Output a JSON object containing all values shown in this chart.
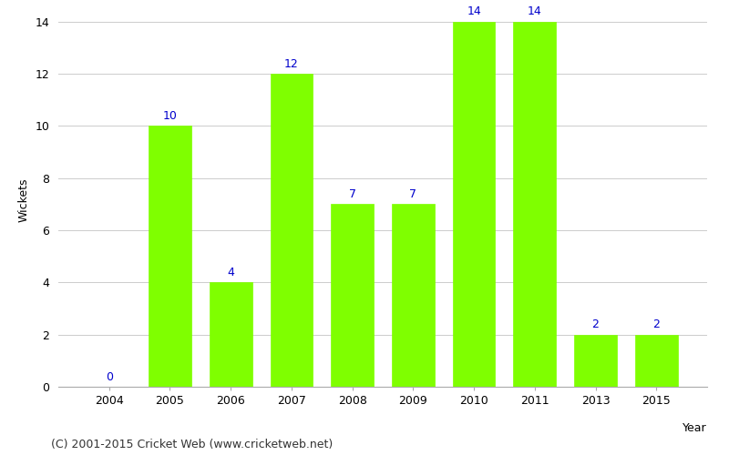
{
  "years": [
    "2004",
    "2005",
    "2006",
    "2007",
    "2008",
    "2009",
    "2010",
    "2011",
    "2013",
    "2015"
  ],
  "wickets": [
    0,
    10,
    4,
    12,
    7,
    7,
    14,
    14,
    2,
    2
  ],
  "bar_color": "#7fff00",
  "label_color": "#0000cc",
  "xlabel": "Year",
  "ylabel": "Wickets",
  "ylim": [
    0,
    14
  ],
  "yticks": [
    0,
    2,
    4,
    6,
    8,
    10,
    12,
    14
  ],
  "footnote": "(C) 2001-2015 Cricket Web (www.cricketweb.net)",
  "bar_width": 0.7,
  "label_fontsize": 9,
  "axis_fontsize": 9,
  "footnote_fontsize": 9,
  "grid_color": "#cccccc"
}
